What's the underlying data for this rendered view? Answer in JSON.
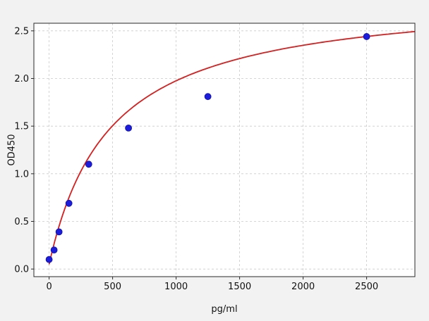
{
  "figure": {
    "bg_color": "#f2f2f2",
    "plot_bg_color": "#ffffff",
    "grid_color": "#c9c9c9",
    "axis_color": "#2a2a2a",
    "tick_color": "#111111"
  },
  "chart_data": {
    "type": "scatter",
    "title": "",
    "xlabel": "pg/ml",
    "ylabel": "OD450",
    "xlim": [
      -120,
      2880
    ],
    "ylim": [
      -0.08,
      2.58
    ],
    "xticks": [
      0,
      500,
      1000,
      1500,
      2000,
      2500
    ],
    "yticks": [
      0.0,
      0.5,
      1.0,
      1.5,
      2.0,
      2.5
    ],
    "grid": true,
    "grid_style": "dashed",
    "series": [
      {
        "name": "standard-points",
        "type": "scatter",
        "color": "#1c1cdd",
        "edge_color": "#12129e",
        "x": [
          0,
          39,
          78,
          156,
          312,
          625,
          1250,
          2500
        ],
        "y": [
          0.1,
          0.2,
          0.39,
          0.69,
          1.1,
          1.48,
          1.81,
          2.44
        ]
      },
      {
        "name": "fit-curve",
        "type": "line",
        "color": "#d42020",
        "model": "saturation",
        "vmax": 2.85,
        "km": 480,
        "offset": 0.05,
        "x_range": [
          0,
          2880
        ]
      }
    ]
  }
}
